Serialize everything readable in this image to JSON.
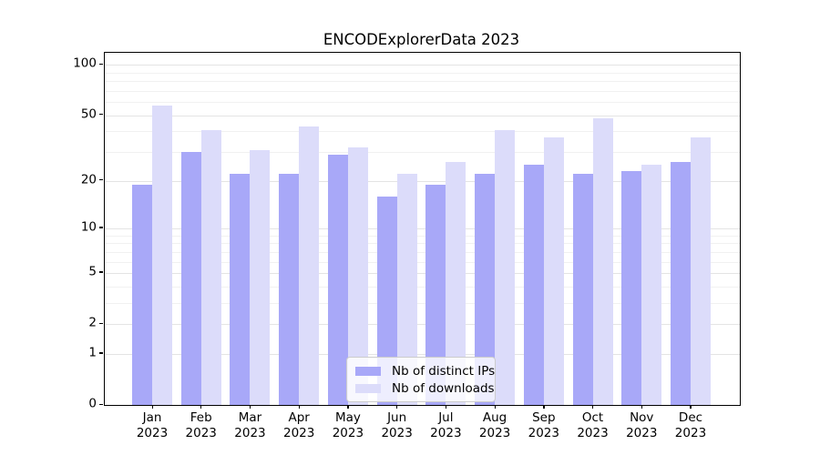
{
  "chart_data": {
    "type": "bar",
    "title": "ENCODExplorerData 2023",
    "categories": [
      {
        "month": "Jan",
        "year": "2023"
      },
      {
        "month": "Feb",
        "year": "2023"
      },
      {
        "month": "Mar",
        "year": "2023"
      },
      {
        "month": "Apr",
        "year": "2023"
      },
      {
        "month": "May",
        "year": "2023"
      },
      {
        "month": "Jun",
        "year": "2023"
      },
      {
        "month": "Jul",
        "year": "2023"
      },
      {
        "month": "Aug",
        "year": "2023"
      },
      {
        "month": "Sep",
        "year": "2023"
      },
      {
        "month": "Oct",
        "year": "2023"
      },
      {
        "month": "Nov",
        "year": "2023"
      },
      {
        "month": "Dec",
        "year": "2023"
      }
    ],
    "series": [
      {
        "name": "Nb of distinct IPs",
        "color": "#a8a8f8",
        "values": [
          19,
          30,
          22,
          22,
          29,
          16,
          19,
          22,
          25,
          22,
          23,
          26
        ]
      },
      {
        "name": "Nb of downloads",
        "color": "#dcdcfa",
        "values": [
          57,
          41,
          31,
          43,
          32,
          22,
          26,
          41,
          37,
          48,
          25,
          37
        ]
      }
    ],
    "yscale": "log1p",
    "yticks": [
      0,
      1,
      2,
      5,
      10,
      20,
      50,
      100
    ],
    "minor_gridlines": [
      3,
      4,
      6,
      7,
      8,
      9,
      30,
      40,
      60,
      70,
      80,
      90
    ],
    "ylim": [
      0,
      118
    ],
    "grid": true,
    "legend_position": "lower center"
  }
}
